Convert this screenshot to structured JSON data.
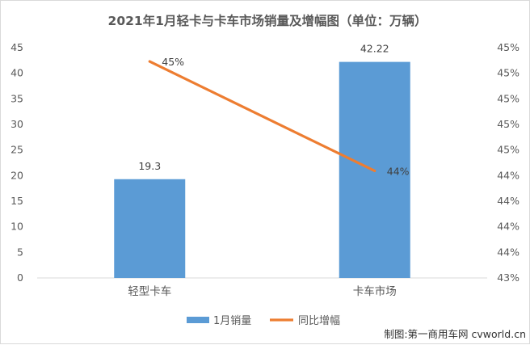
{
  "chart_data": {
    "type": "bar",
    "title": "2021年1月轻卡与卡车市场销量及增幅图（单位：万辆）",
    "categories": [
      "轻型卡车",
      "卡车市场"
    ],
    "series": [
      {
        "name": "1月销量",
        "type": "bar",
        "axis": "left",
        "values": [
          19.3,
          42.22
        ],
        "labels": [
          "19.3",
          "42.22"
        ],
        "color": "#5b9bd5"
      },
      {
        "name": "同比增幅",
        "type": "line",
        "axis": "right",
        "values": [
          0.4488,
          0.4393
        ],
        "labels": [
          "45%",
          "44%"
        ],
        "color": "#ed7d31"
      }
    ],
    "y_left": {
      "ylim": [
        0,
        45
      ],
      "ticks": [
        "0",
        "5",
        "10",
        "15",
        "20",
        "25",
        "30",
        "35",
        "40",
        "45"
      ]
    },
    "y_right": {
      "ylim": [
        0.43,
        0.45
      ],
      "ticks": [
        "43%",
        "44%",
        "44%",
        "44%",
        "44%",
        "45%",
        "45%",
        "45%",
        "45%",
        "45%"
      ]
    },
    "grid": false,
    "legend_position": "bottom"
  },
  "colors": {
    "axis_text": "#595959",
    "axis_line": "#d9d9d9",
    "title": "#595959"
  },
  "footer": {
    "watermark": "制图:第一商用车网 cvworld.cn"
  }
}
